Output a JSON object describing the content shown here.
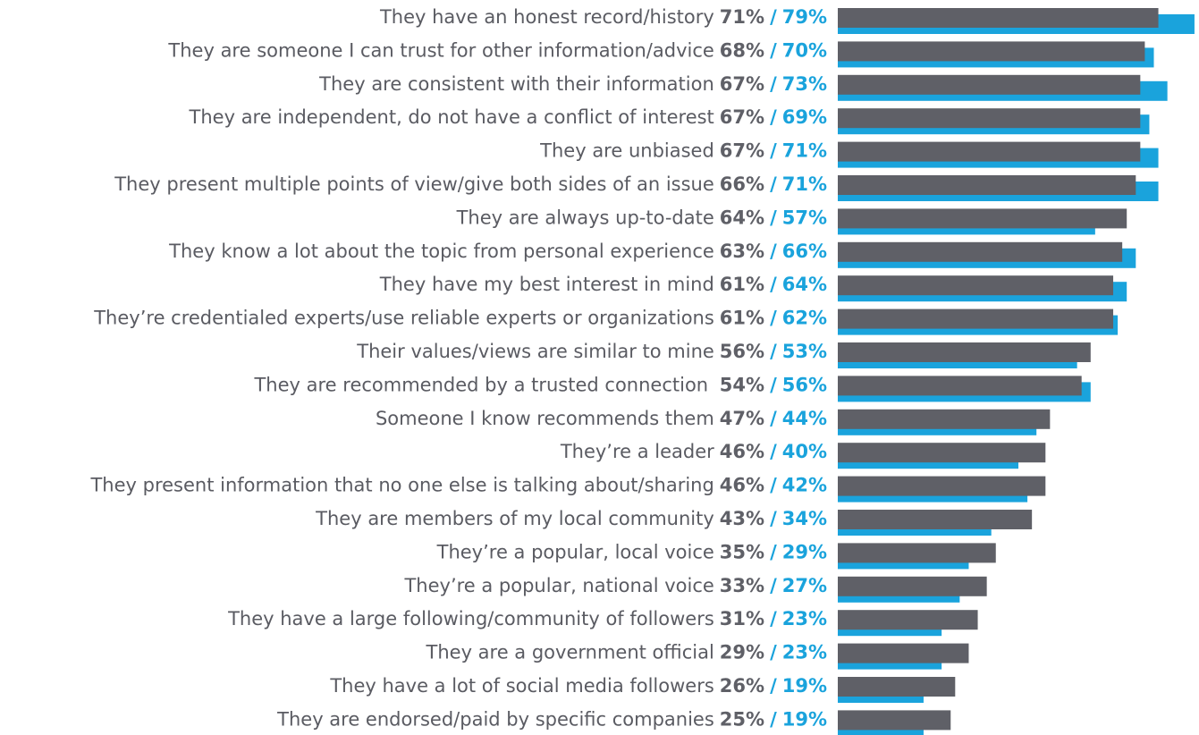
{
  "chart_data": {
    "type": "barh",
    "categories": [
      "They have an honest record/history",
      "They are someone I can trust for other information/advice",
      "They are consistent with their information",
      "They are independent, do not have a conflict of interest",
      "They are unbiased",
      "They present multiple points of view/give both sides of an issue",
      "They are always up-to-date",
      "They know a lot about the topic from personal experience",
      "They have my best interest in mind",
      "They’re credentialed experts/use reliable experts or organizations",
      "Their values/views are similar to mine",
      "They are recommended by a trusted connection ",
      "Someone I know recommends them",
      "They’re a leader",
      "They present information that no one else is talking about/sharing",
      "They are members of my local community",
      "They’re a popular, local voice",
      "They’re a popular, national voice",
      "They have a large following/community of followers",
      "They are a government official",
      "They have a lot of social media followers",
      "They are endorsed/paid by specific companies"
    ],
    "series": [
      {
        "color": "#5f6067",
        "values": [
          71,
          68,
          67,
          67,
          67,
          66,
          64,
          63,
          61,
          61,
          56,
          54,
          47,
          46,
          46,
          43,
          35,
          33,
          31,
          29,
          26,
          25
        ],
        "value_labels": [
          "71%",
          "68%",
          "67%",
          "67%",
          "67%",
          "66%",
          "64%",
          "63%",
          "61%",
          "61%",
          "56%",
          "54%",
          "47%",
          "46%",
          "46%",
          "43%",
          "35%",
          "33%",
          "31%",
          "29%",
          "26%",
          "25%"
        ]
      },
      {
        "color": "#1aa3dc",
        "values": [
          79,
          70,
          73,
          69,
          71,
          71,
          57,
          66,
          64,
          62,
          53,
          56,
          44,
          40,
          42,
          34,
          29,
          27,
          23,
          23,
          19,
          19
        ],
        "value_labels": [
          "79%",
          "70%",
          "73%",
          "69%",
          "71%",
          "71%",
          "57%",
          "66%",
          "64%",
          "62%",
          "53%",
          "56%",
          "44%",
          "40%",
          "42%",
          "34%",
          "29%",
          "27%",
          "23%",
          "23%",
          "19%",
          "19%"
        ]
      }
    ],
    "label_separator": "/",
    "xlim": [
      0,
      80
    ]
  }
}
